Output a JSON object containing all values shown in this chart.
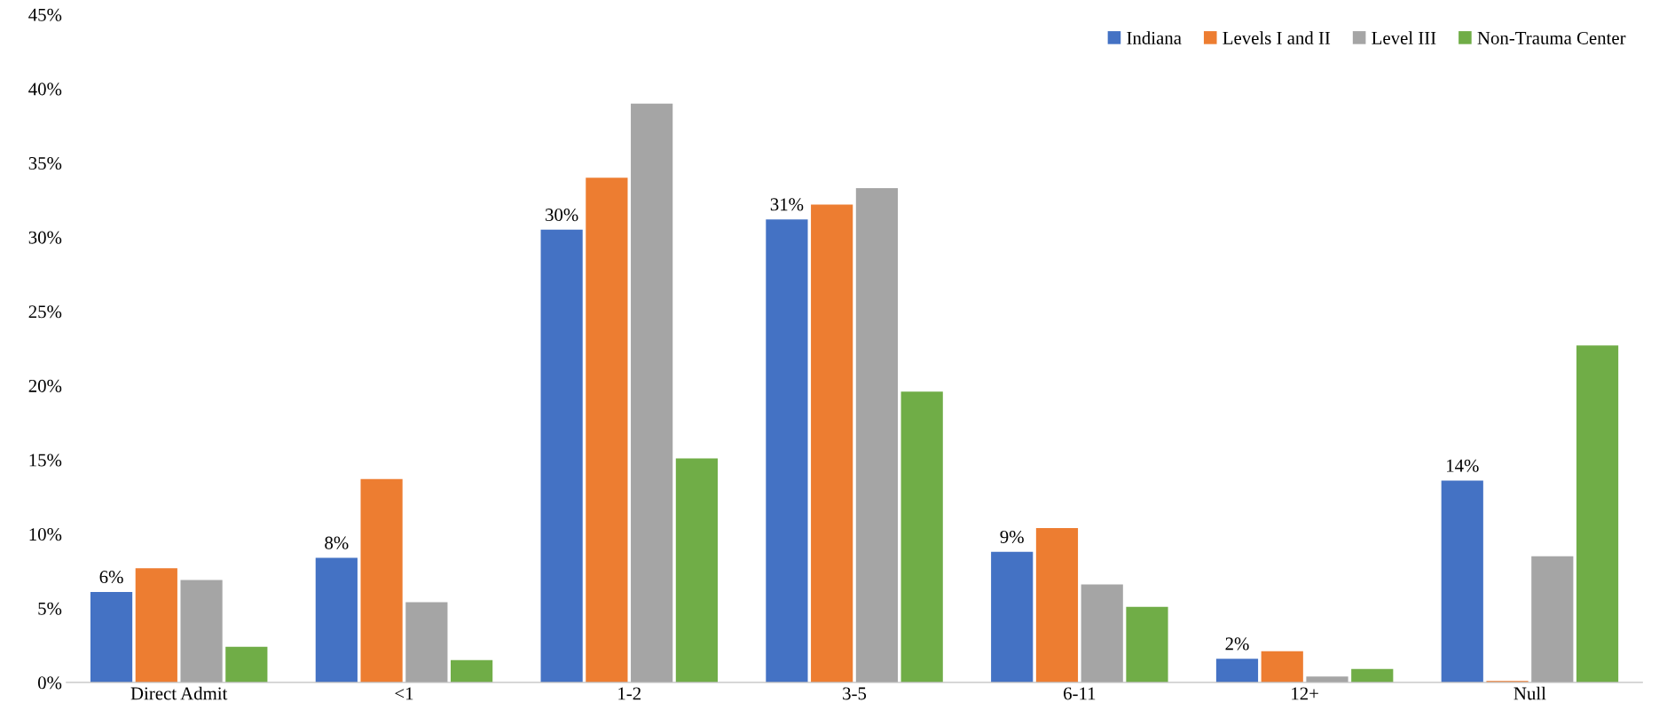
{
  "chart_data": {
    "type": "bar",
    "categories": [
      "Direct Admit",
      "<1",
      "1-2",
      "3-5",
      "6-11",
      "12+",
      "Null"
    ],
    "series": [
      {
        "name": "Indiana",
        "color": "#4472c4",
        "values": [
          6.1,
          8.4,
          30.5,
          31.2,
          8.8,
          1.6,
          13.6
        ],
        "value_labels": [
          "6%",
          "8%",
          "30%",
          "31%",
          "9%",
          "2%",
          "14%"
        ]
      },
      {
        "name": "Levels I and II",
        "color": "#ed7d31",
        "values": [
          7.7,
          13.7,
          34.0,
          32.2,
          10.4,
          2.1,
          0.1
        ]
      },
      {
        "name": "Level III",
        "color": "#a5a5a5",
        "values": [
          6.9,
          5.4,
          39.0,
          33.3,
          6.6,
          0.4,
          8.5
        ]
      },
      {
        "name": "Non-Trauma Center",
        "color": "#70ad47",
        "values": [
          2.4,
          1.5,
          15.1,
          19.6,
          5.1,
          0.9,
          22.7
        ]
      }
    ],
    "ylim": [
      0,
      45
    ],
    "yticks": [
      {
        "value": 0,
        "label": "0%"
      },
      {
        "value": 5,
        "label": "5%"
      },
      {
        "value": 10,
        "label": "10%"
      },
      {
        "value": 15,
        "label": "15%"
      },
      {
        "value": 20,
        "label": "20%"
      },
      {
        "value": 25,
        "label": "25%"
      },
      {
        "value": 30,
        "label": "30%"
      },
      {
        "value": 35,
        "label": "35%"
      },
      {
        "value": 40,
        "label": "40%"
      },
      {
        "value": 45,
        "label": "45%"
      }
    ],
    "grid": false,
    "legend": "top right"
  }
}
